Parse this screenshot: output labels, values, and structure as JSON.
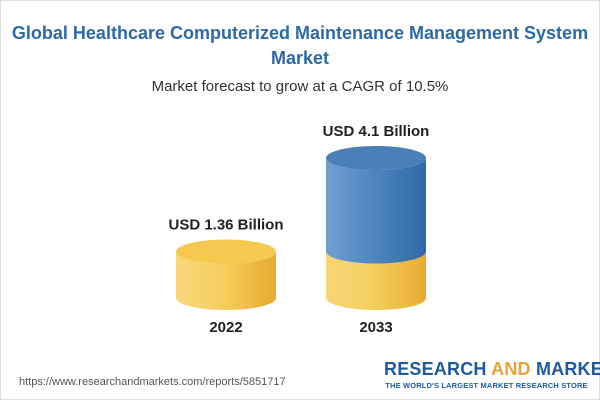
{
  "header": {
    "title": "Global Healthcare Computerized Maintenance Management System Market",
    "subtitle": "Market forecast to grow at a CAGR of 10.5%"
  },
  "footer": {
    "url": "https://www.researchandmarkets.com/reports/5851717",
    "brand_part1": "RESEARCH ",
    "brand_and": "AND",
    "brand_part2": " MARKETS",
    "tagline": "THE WORLD'S LARGEST MARKET RESEARCH STORE"
  },
  "colors": {
    "base_gold": "#f3c348",
    "growth_blue": "#4a82bd",
    "title_blue": "#2d6aa6"
  },
  "chart_data": {
    "type": "bar",
    "categories": [
      "2022",
      "2033"
    ],
    "values": [
      1.36,
      4.1
    ],
    "unit": "USD Billion",
    "data_labels": [
      "USD 1.36 Billion",
      "USD 4.1 Billion"
    ],
    "ylim": [
      0,
      4.1
    ],
    "grid": false,
    "legend": "none"
  }
}
